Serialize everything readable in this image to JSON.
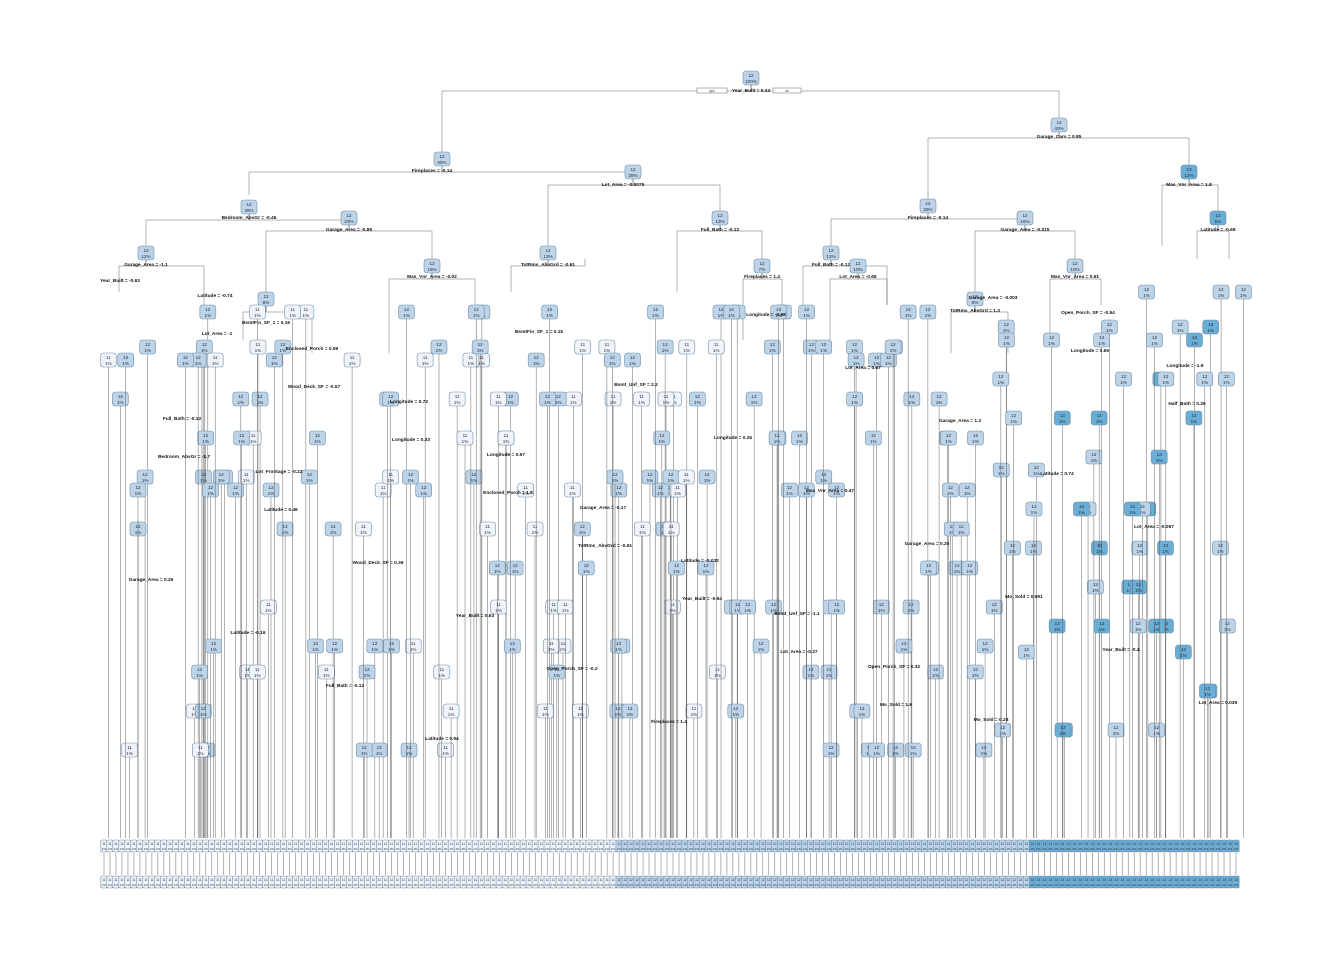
{
  "tree": {
    "root": {
      "value": "12",
      "pct": "100%",
      "split": "Year_Built = 0.43",
      "left_tag": "yes",
      "right_tag": "no"
    },
    "nodes": [
      {
        "id": "n2",
        "value": "12",
        "pct": "60%",
        "split": "Fireplaces = -0.14"
      },
      {
        "id": "n3",
        "value": "12",
        "pct": "40%",
        "split": "Garage_Cars = 0.85"
      },
      {
        "id": "n4",
        "value": "12",
        "pct": "35%",
        "split": "Bedroom_AbvGr = -0.46"
      },
      {
        "id": "n5",
        "value": "12",
        "pct": "25%",
        "split": "Lot_Area = -0.0075"
      },
      {
        "id": "n6",
        "value": "12",
        "pct": "28%",
        "split": "Fireplaces = -0.14"
      },
      {
        "id": "n7",
        "value": "13",
        "pct": "12%",
        "split": "Mas_Vnr_Area = 1.8"
      },
      {
        "id": "n8",
        "value": "12",
        "pct": "12%",
        "split": "Garage_Area = -1.1"
      },
      {
        "id": "n9",
        "value": "12",
        "pct": "23%",
        "split": "Garage_Area = -0.85"
      },
      {
        "id": "n10",
        "value": "12",
        "pct": "13%",
        "split": "TotRms_AbvGrd = -0.61"
      },
      {
        "id": "n11",
        "value": "12",
        "pct": "13%",
        "split": "Full_Bath = -0.12"
      },
      {
        "id": "n12",
        "value": "12",
        "pct": "12%",
        "split": "Full_Bath = -0.12"
      },
      {
        "id": "n13",
        "value": "12",
        "pct": "16%",
        "split": "Garage_Area = -0.015"
      },
      {
        "id": "n14",
        "value": "13",
        "pct": "5%",
        "split": "Latitude = -0.68"
      },
      {
        "id": "n15",
        "value": "12",
        "pct": "15%",
        "split": "Mas_Vnr_Area = -0.02"
      },
      {
        "id": "n16",
        "value": "12",
        "pct": "8%",
        "split": "BsmtFin_SF_1 = 0.15"
      },
      {
        "id": "n17",
        "value": "12",
        "pct": "10%",
        "split": "Mas_Vnr_Area = 0.91"
      },
      {
        "id": "n18",
        "value": "12",
        "pct": "7%",
        "split": "Fireplaces = 1.4"
      },
      {
        "id": "n19",
        "value": "12",
        "pct": "10%",
        "split": "Lot_Area = -0.65"
      },
      {
        "id": "n20",
        "value": "12",
        "pct": "8%",
        "split": "TotRms_AbvGrd = 1.3"
      }
    ],
    "split_labels_mid": [
      "Year_Built = -0.63",
      "Lot_Area = -1",
      "Wood_Deck_SF = -0.57",
      "Longitude = 0.33",
      "Enclosed_Porch = 1.8",
      "TotRms_AbvGrd = -0.61",
      "Year_Built = -0.94",
      "Lot_Area = -0.27",
      "Mo_Sold = 1.6",
      "Garage_Area = -0.003",
      "Longitude = 0.65",
      "Half_Bath = 0.25",
      "Bedroom_AbvGr = -1.7",
      "Latitude = 0.46",
      "Wood_Deck_SF = 0.36",
      "Year_Built = 0.63",
      "Open_Porch_SF = -0.2",
      "Fireplaces = 1.4",
      "Longitude = -0.98",
      "Lot_Area = 0.67",
      "Garage_Area = 1.3",
      "Latitude = 0.74",
      "Lot_Area = -0.067",
      "Garage_Area = 0.25",
      "Latitude = -0.16",
      "Full_Bath = -0.12",
      "Latitude = 0.94",
      "BsmtFin_SF_1 = 0.15",
      "Bsmt_Unf_SF = 2.2",
      "Longitude = 0.26",
      "Mas_Vnr_Area = 0.47",
      "Garage_Area = 0.26",
      "Mo_Sold = 0.091",
      "Year_Built = -0.4",
      "Lot_Area = 0.039",
      "Latitude = -0.74",
      "Enclosed_Porch = 0.59",
      "Longitude = 0.72",
      "Longitude = 0.67",
      "Garage_Area = -0.17",
      "Latitude = -0.032",
      "Bsmt_Unf_SF = -1.1",
      "Open_Porch_SF = 0.32",
      "Mo_Sold = 0.28",
      "Open_Porch_SF = -0.54",
      "Longitude = -1.9",
      "Full_Bath = -0.12",
      "Lot_Frontage = -0.22"
    ],
    "leaf_value": "11",
    "leaf_value_alt": "12",
    "leaf_value_high": "13",
    "leaf_pct": "1%",
    "leaf_count": 190
  },
  "colors": {
    "low": "#f0f4fa",
    "mid": "#bcd3e8",
    "high": "#6aaed6",
    "edge": "#555555"
  }
}
